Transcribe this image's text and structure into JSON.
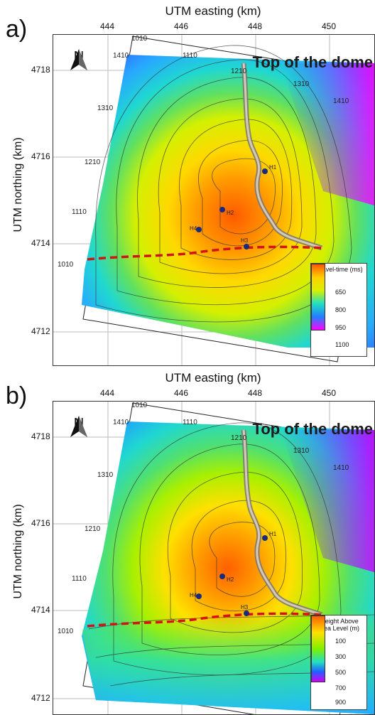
{
  "panels": [
    {
      "letter": "a)",
      "x_axis_title": "UTM easting (km)",
      "y_axis_title": "UTM northing (km)",
      "x_ticks": [
        "444",
        "446",
        "448",
        "450"
      ],
      "y_ticks": [
        "4718",
        "4716",
        "4714",
        "4712"
      ],
      "map_title": "Top of the dome",
      "north_label": "N",
      "grid_labels": [
        "1010",
        "1410",
        "1110",
        "1210",
        "1310",
        "1410",
        "1310",
        "1210",
        "1110",
        "1010"
      ],
      "wells": [
        "H1",
        "H2",
        "H3",
        "H4"
      ],
      "legend_title": "Travel-time (ms)",
      "legend_ticks": [
        "650",
        "800",
        "950",
        "1100"
      ],
      "colors": {
        "gradient": [
          "#ff5a00",
          "#ffd000",
          "#d8f000",
          "#20e0c0",
          "#2080ff",
          "#ff00ff"
        ]
      }
    },
    {
      "letter": "b)",
      "x_axis_title": "UTM easting (km)",
      "y_axis_title": "UTM northing (km)",
      "x_ticks": [
        "444",
        "446",
        "448",
        "450"
      ],
      "y_ticks": [
        "4718",
        "4716",
        "4714",
        "4712"
      ],
      "map_title": "Top of the dome",
      "north_label": "N",
      "grid_labels": [
        "1010",
        "1410",
        "1110",
        "1210",
        "1310",
        "1410",
        "1310",
        "1210",
        "1110",
        "1010"
      ],
      "wells": [
        "H1",
        "H2",
        "H3",
        "H4"
      ],
      "legend_title": "Height Above Sea Level (m)",
      "legend_ticks": [
        "100",
        "300",
        "500",
        "700",
        "900"
      ],
      "colors": {
        "gradient": [
          "#ff6000",
          "#ffe000",
          "#80f000",
          "#20e0c0",
          "#2060ff",
          "#d000ff"
        ]
      }
    }
  ]
}
